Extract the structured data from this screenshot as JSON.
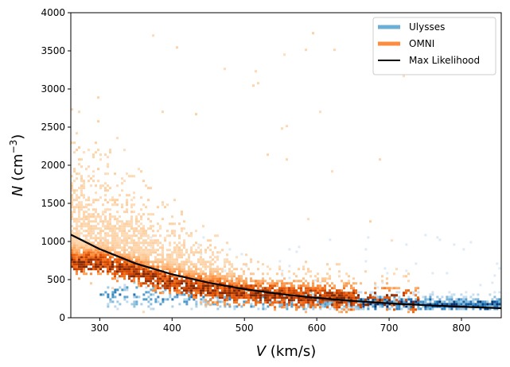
{
  "chart_data": {
    "type": "heatmap",
    "title": "",
    "xlabel_var": "V",
    "xlabel_unit": " (km/s)",
    "ylabel_var": "N",
    "ylabel_unit_pre": " (cm",
    "ylabel_unit_sup": "−3",
    "ylabel_unit_post": ")",
    "xlim": [
      260,
      855
    ],
    "ylim": [
      0,
      4000
    ],
    "xticks": [
      300,
      400,
      500,
      600,
      700,
      800
    ],
    "yticks": [
      0,
      500,
      1000,
      1500,
      2000,
      2500,
      3000,
      3500,
      4000
    ],
    "legend_position": "top-right",
    "series": [
      {
        "name": "Ulysses",
        "kind": "2d-histogram",
        "colormap": "Blues",
        "color": "#6baed6",
        "density_center": [
          {
            "v": 300,
            "n": 300
          },
          {
            "v": 400,
            "n": 260
          },
          {
            "v": 500,
            "n": 220
          },
          {
            "v": 600,
            "n": 190
          },
          {
            "v": 700,
            "n": 170
          },
          {
            "v": 800,
            "n": 150
          }
        ]
      },
      {
        "name": "OMNI",
        "kind": "2d-histogram",
        "colormap": "Oranges",
        "color": "#fd8d3c",
        "density_center": [
          {
            "v": 300,
            "n": 700
          },
          {
            "v": 350,
            "n": 560
          },
          {
            "v": 400,
            "n": 430
          },
          {
            "v": 450,
            "n": 350
          },
          {
            "v": 500,
            "n": 300
          },
          {
            "v": 550,
            "n": 270
          },
          {
            "v": 600,
            "n": 250
          },
          {
            "v": 650,
            "n": 230
          },
          {
            "v": 700,
            "n": 200
          }
        ]
      },
      {
        "name": "Max Likelihood",
        "kind": "line",
        "color": "#000000",
        "x": [
          260,
          300,
          350,
          400,
          450,
          500,
          550,
          600,
          650,
          700,
          750,
          800,
          855
        ],
        "y": [
          1090,
          900,
          710,
          570,
          460,
          375,
          310,
          260,
          220,
          190,
          165,
          145,
          125
        ]
      }
    ]
  }
}
